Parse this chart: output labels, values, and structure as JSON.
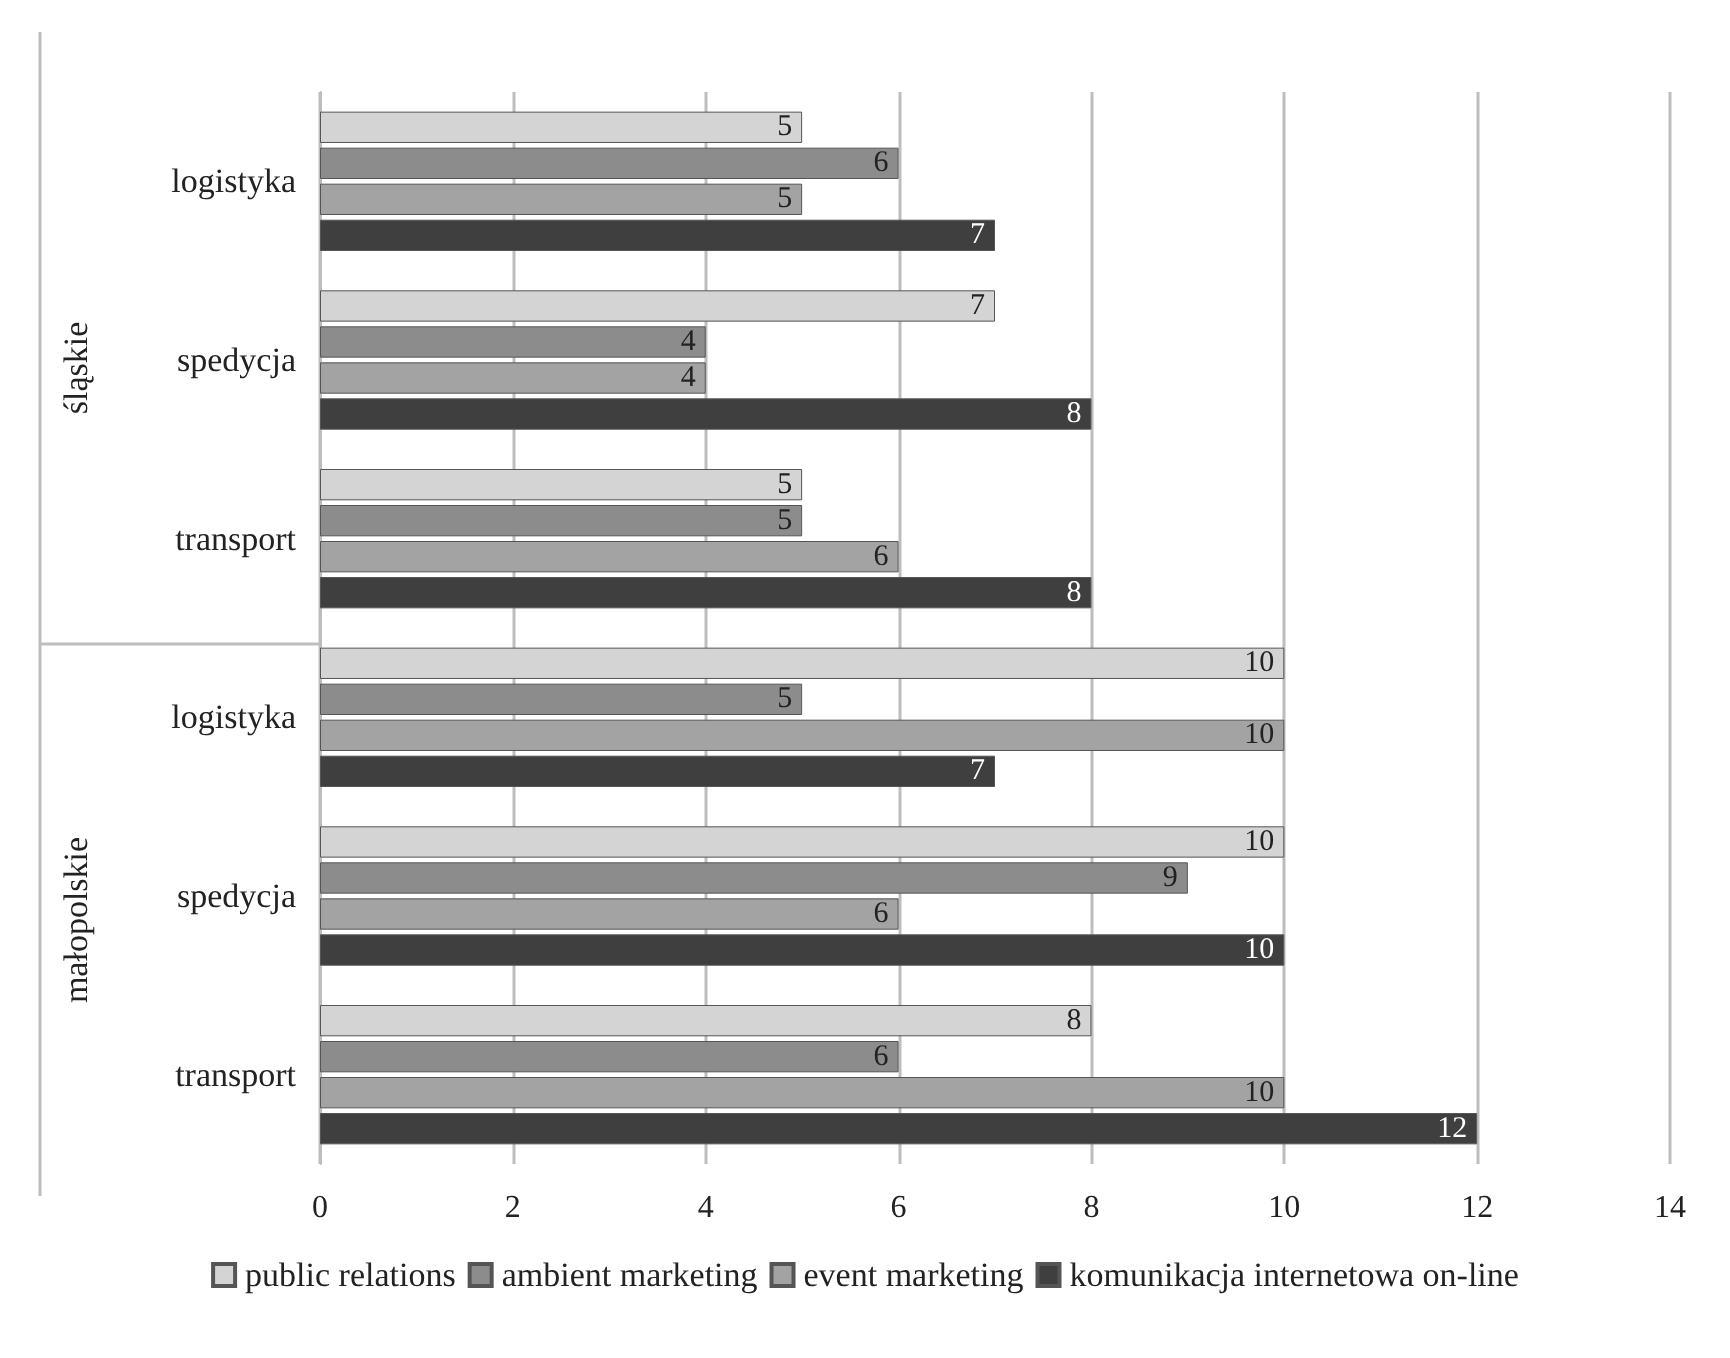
{
  "chart_data": {
    "type": "bar",
    "orientation": "horizontal",
    "categories": [
      "logistyka",
      "spedycja",
      "transport",
      "logistyka",
      "spedycja",
      "transport"
    ],
    "annotations": [
      "śląskie",
      "małopolskie"
    ],
    "series": [
      {
        "name": "public relations",
        "color": "#d4d4d4",
        "values": [
          5,
          7,
          5,
          10,
          10,
          8
        ]
      },
      {
        "name": "ambient marketing",
        "color": "#8c8c8c",
        "values": [
          6,
          4,
          5,
          5,
          9,
          6
        ]
      },
      {
        "name": "event marketing",
        "color": "#a3a3a3",
        "values": [
          5,
          4,
          6,
          10,
          6,
          10
        ]
      },
      {
        "name": "komunikacja internetowa on-line",
        "color": "#3f3f3f",
        "values": [
          7,
          8,
          8,
          7,
          10,
          12
        ]
      }
    ],
    "xlim": [
      0,
      14
    ],
    "xticks": [
      0,
      2,
      4,
      6,
      8,
      10,
      12,
      14
    ],
    "grid": "x",
    "legend": "bottom",
    "data_labels": true
  }
}
